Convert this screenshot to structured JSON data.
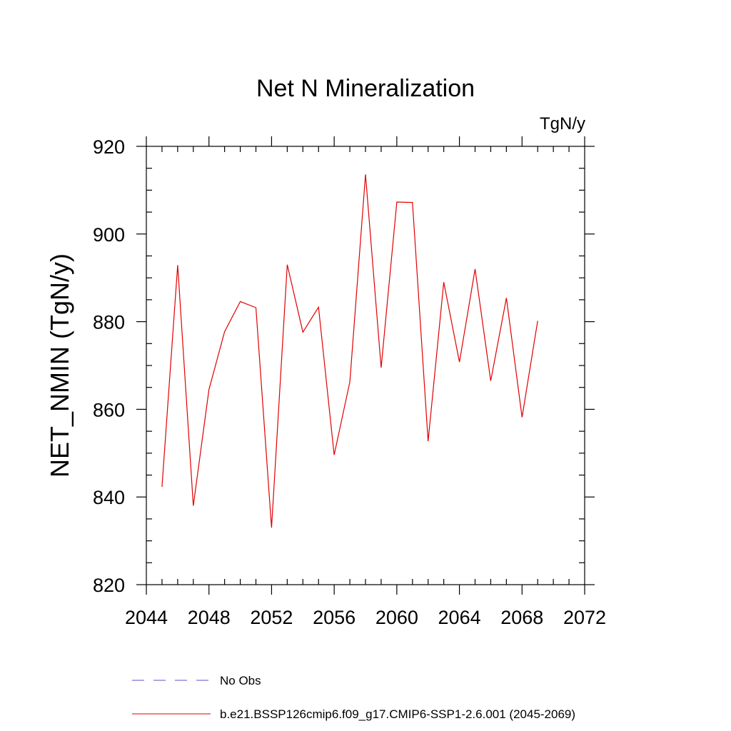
{
  "chart_data": {
    "type": "line",
    "title": "Net N Mineralization",
    "units": "TgN/y",
    "xlabel": "",
    "ylabel": "NET_NMIN  (TgN/y)",
    "xlim": [
      2044,
      2072
    ],
    "ylim": [
      820,
      920
    ],
    "x_ticks": [
      2044,
      2048,
      2052,
      2056,
      2060,
      2064,
      2068,
      2072
    ],
    "y_ticks": [
      820,
      840,
      860,
      880,
      900,
      920
    ],
    "x_minor_step": 1,
    "y_minor_step": 5,
    "grid": false,
    "legend_position": "bottom",
    "x": [
      2045,
      2046,
      2047,
      2048,
      2049,
      2050,
      2051,
      2052,
      2053,
      2054,
      2055,
      2056,
      2057,
      2058,
      2059,
      2060,
      2061,
      2062,
      2063,
      2064,
      2065,
      2066,
      2067,
      2068,
      2069
    ],
    "series": [
      {
        "name": "b.e21.BSSP126cmip6.f09_g17.CMIP6-SSP1-2.6.001 (2045-2069)",
        "color": "#e00000",
        "style": "solid",
        "values": [
          842.3,
          892.9,
          838.0,
          864.5,
          877.7,
          884.6,
          883.2,
          833.0,
          893.0,
          877.6,
          883.3,
          849.6,
          866.3,
          913.6,
          869.5,
          907.3,
          907.2,
          852.7,
          889.0,
          870.8,
          892.0,
          866.5,
          885.4,
          858.2,
          880.2
        ]
      }
    ],
    "legend": [
      {
        "label": "No Obs",
        "color": "#5a55c8",
        "style": "dashed"
      },
      {
        "label": "b.e21.BSSP126cmip6.f09_g17.CMIP6-SSP1-2.6.001 (2045-2069)",
        "color": "#e00000",
        "style": "solid"
      }
    ]
  }
}
